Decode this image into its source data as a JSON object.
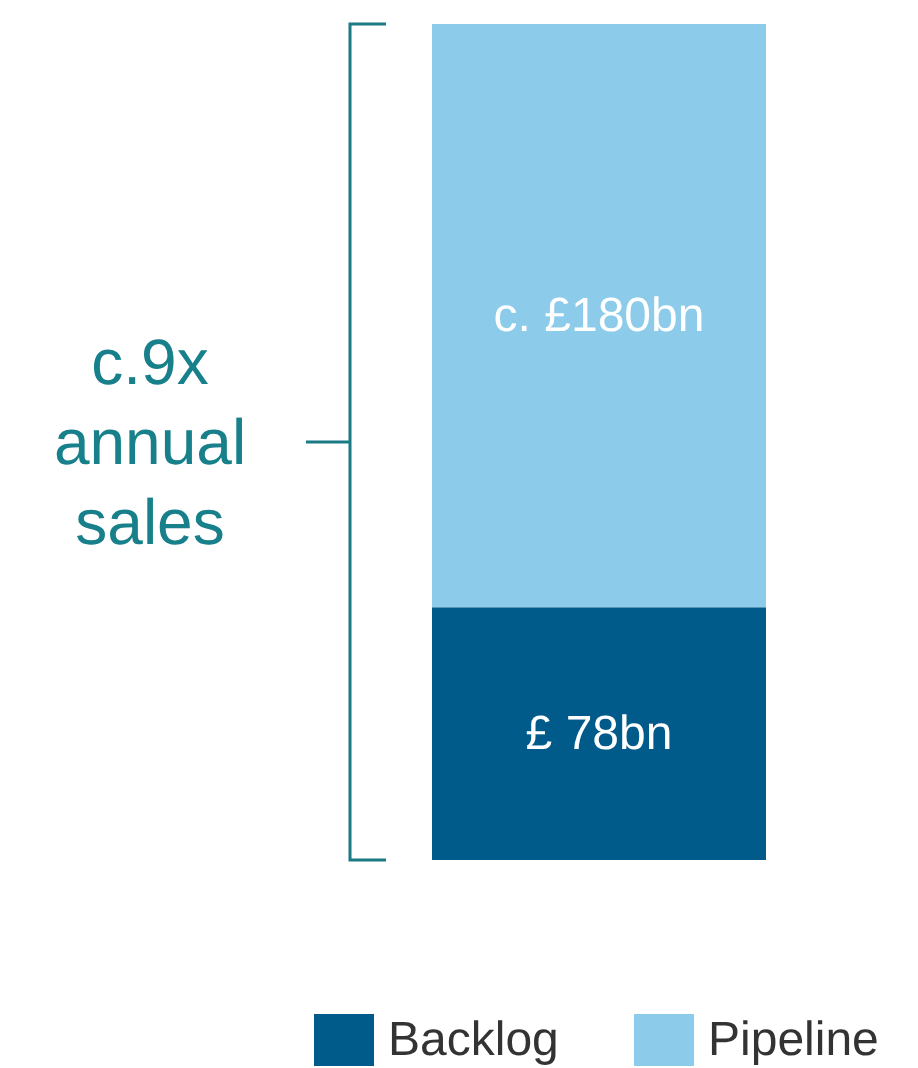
{
  "chart_data": {
    "type": "bar",
    "stacked": true,
    "categories": [
      null
    ],
    "series": [
      {
        "name": "Backlog",
        "color": "#005b8a",
        "values": [
          78
        ],
        "value_labels": [
          "£ 78bn"
        ]
      },
      {
        "name": "Pipeline",
        "color": "#8ccbea",
        "values": [
          180
        ],
        "value_labels": [
          "c. £180bn"
        ]
      }
    ],
    "annotations": [
      "c.9x annual sales"
    ],
    "legend": "bottom right"
  }
}
